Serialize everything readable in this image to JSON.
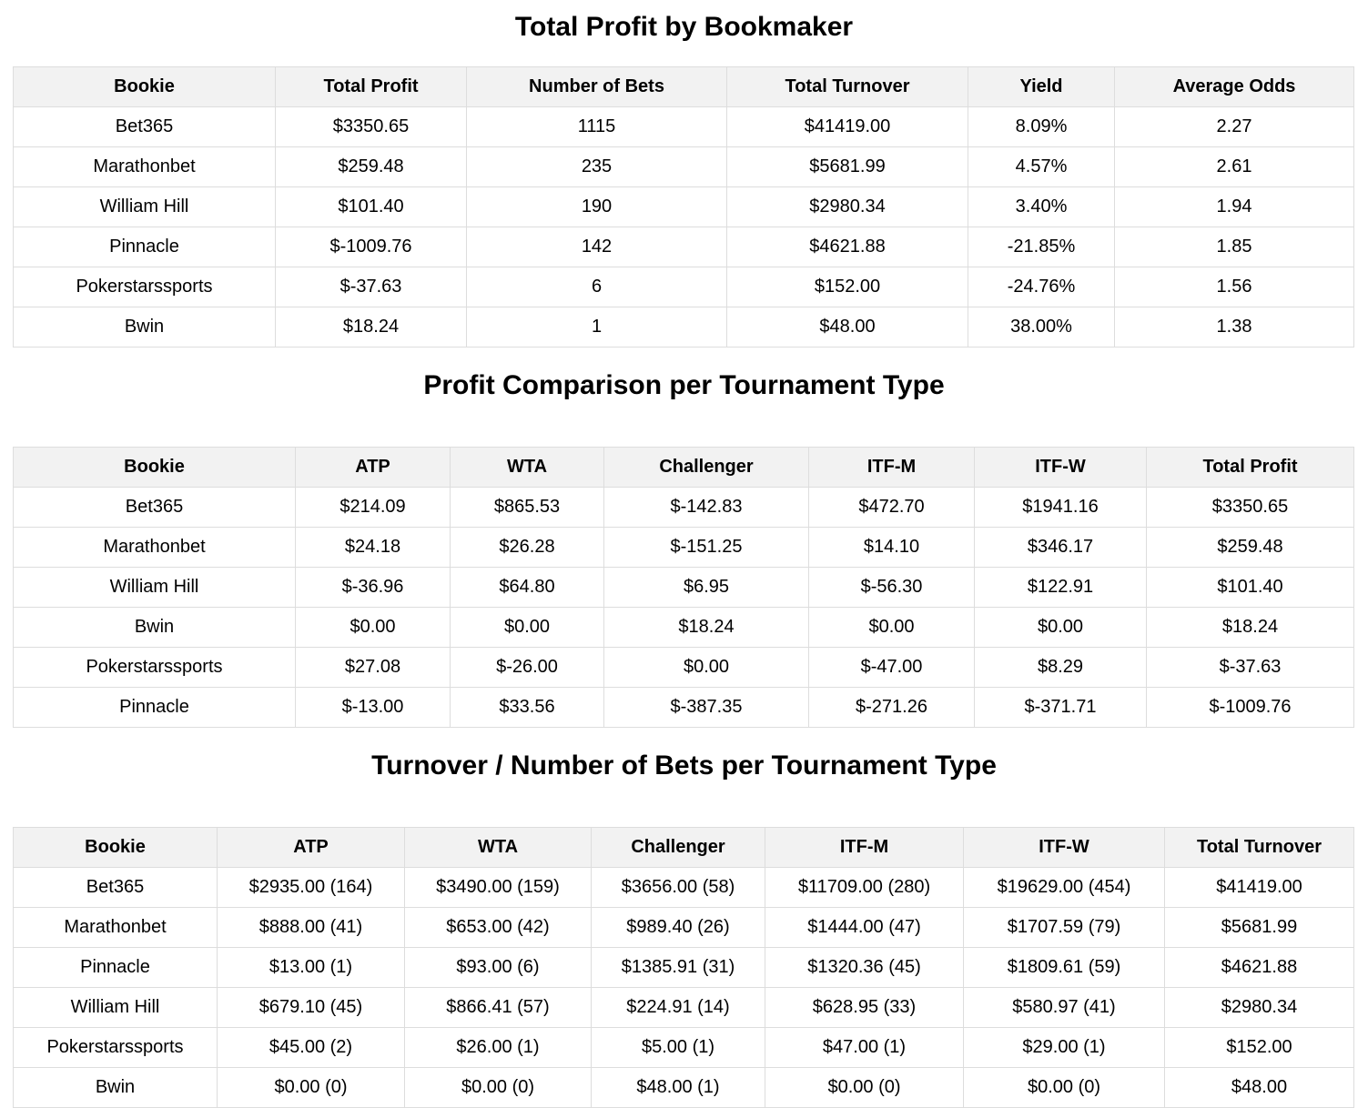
{
  "sections": [
    {
      "title": "Total Profit by Bookmaker",
      "headers": [
        "Bookie",
        "Total Profit",
        "Number of Bets",
        "Total Turnover",
        "Yield",
        "Average Odds"
      ],
      "rows": [
        [
          "Bet365",
          "$3350.65",
          "1115",
          "$41419.00",
          "8.09%",
          "2.27"
        ],
        [
          "Marathonbet",
          "$259.48",
          "235",
          "$5681.99",
          "4.57%",
          "2.61"
        ],
        [
          "William Hill",
          "$101.40",
          "190",
          "$2980.34",
          "3.40%",
          "1.94"
        ],
        [
          "Pinnacle",
          "$-1009.76",
          "142",
          "$4621.88",
          "-21.85%",
          "1.85"
        ],
        [
          "Pokerstarssports",
          "$-37.63",
          "6",
          "$152.00",
          "-24.76%",
          "1.56"
        ],
        [
          "Bwin",
          "$18.24",
          "1",
          "$48.00",
          "38.00%",
          "1.38"
        ]
      ]
    },
    {
      "title": "Profit Comparison per Tournament Type",
      "headers": [
        "Bookie",
        "ATP",
        "WTA",
        "Challenger",
        "ITF-M",
        "ITF-W",
        "Total Profit"
      ],
      "rows": [
        [
          "Bet365",
          "$214.09",
          "$865.53",
          "$-142.83",
          "$472.70",
          "$1941.16",
          "$3350.65"
        ],
        [
          "Marathonbet",
          "$24.18",
          "$26.28",
          "$-151.25",
          "$14.10",
          "$346.17",
          "$259.48"
        ],
        [
          "William Hill",
          "$-36.96",
          "$64.80",
          "$6.95",
          "$-56.30",
          "$122.91",
          "$101.40"
        ],
        [
          "Bwin",
          "$0.00",
          "$0.00",
          "$18.24",
          "$0.00",
          "$0.00",
          "$18.24"
        ],
        [
          "Pokerstarssports",
          "$27.08",
          "$-26.00",
          "$0.00",
          "$-47.00",
          "$8.29",
          "$-37.63"
        ],
        [
          "Pinnacle",
          "$-13.00",
          "$33.56",
          "$-387.35",
          "$-271.26",
          "$-371.71",
          "$-1009.76"
        ]
      ]
    },
    {
      "title": "Turnover / Number of Bets per Tournament Type",
      "headers": [
        "Bookie",
        "ATP",
        "WTA",
        "Challenger",
        "ITF-M",
        "ITF-W",
        "Total Turnover"
      ],
      "rows": [
        [
          "Bet365",
          "$2935.00 (164)",
          "$3490.00 (159)",
          "$3656.00 (58)",
          "$11709.00 (280)",
          "$19629.00 (454)",
          "$41419.00"
        ],
        [
          "Marathonbet",
          "$888.00 (41)",
          "$653.00 (42)",
          "$989.40 (26)",
          "$1444.00 (47)",
          "$1707.59 (79)",
          "$5681.99"
        ],
        [
          "Pinnacle",
          "$13.00 (1)",
          "$93.00 (6)",
          "$1385.91 (31)",
          "$1320.36 (45)",
          "$1809.61 (59)",
          "$4621.88"
        ],
        [
          "William Hill",
          "$679.10 (45)",
          "$866.41 (57)",
          "$224.91 (14)",
          "$628.95 (33)",
          "$580.97 (41)",
          "$2980.34"
        ],
        [
          "Pokerstarssports",
          "$45.00 (2)",
          "$26.00 (1)",
          "$5.00 (1)",
          "$47.00 (1)",
          "$29.00 (1)",
          "$152.00"
        ],
        [
          "Bwin",
          "$0.00 (0)",
          "$0.00 (0)",
          "$48.00 (1)",
          "$0.00 (0)",
          "$0.00 (0)",
          "$48.00"
        ]
      ]
    }
  ]
}
